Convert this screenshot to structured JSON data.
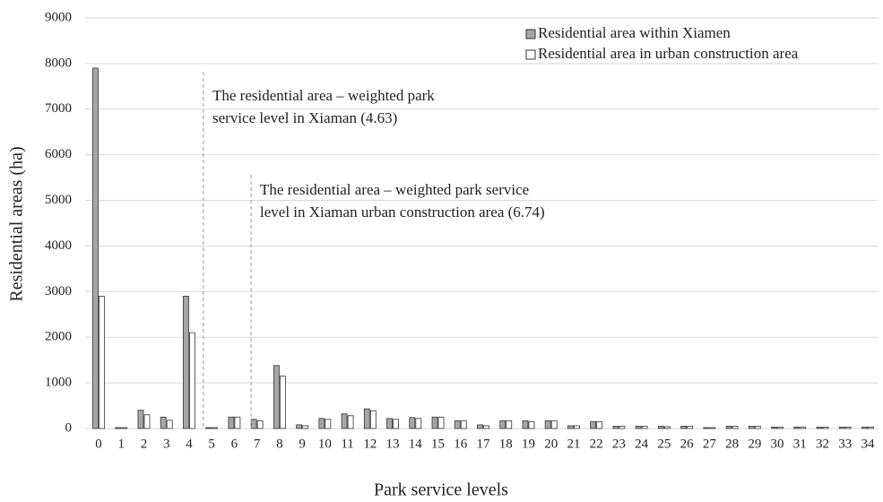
{
  "chart_data": {
    "type": "bar",
    "x_label": "Park service levels",
    "y_label": "Residential areas (ha)",
    "categories": [
      "0",
      "1",
      "2",
      "3",
      "4",
      "5",
      "6",
      "7",
      "8",
      "9",
      "10",
      "11",
      "12",
      "13",
      "14",
      "15",
      "16",
      "17",
      "18",
      "19",
      "20",
      "21",
      "22",
      "23",
      "24",
      "25",
      "26",
      "27",
      "28",
      "29",
      "30",
      "31",
      "32",
      "33",
      "34"
    ],
    "series": [
      {
        "name": "Residential area within Xiamen",
        "color": "#a6a6a6",
        "values": [
          7900,
          20,
          400,
          250,
          2900,
          20,
          250,
          200,
          1380,
          80,
          220,
          320,
          430,
          220,
          240,
          250,
          170,
          80,
          170,
          170,
          170,
          60,
          150,
          50,
          50,
          50,
          50,
          20,
          50,
          50,
          30,
          30,
          30,
          30,
          30
        ]
      },
      {
        "name": "Residential area in urban construction area",
        "color": "#ffffff",
        "values": [
          2900,
          20,
          300,
          180,
          2100,
          20,
          250,
          170,
          1150,
          60,
          200,
          280,
          390,
          200,
          220,
          250,
          170,
          60,
          170,
          150,
          170,
          60,
          150,
          50,
          50,
          40,
          50,
          20,
          50,
          50,
          30,
          30,
          30,
          30,
          30
        ]
      }
    ],
    "ylim": [
      0,
      9000
    ],
    "yticks": [
      0,
      1000,
      2000,
      3000,
      4000,
      5000,
      6000,
      7000,
      8000,
      9000
    ],
    "grid": true,
    "legend": "top-right",
    "annotations": [
      {
        "x": 4.63,
        "text": [
          "The residential area – weighted park",
          "service level in Xiaman (4.63)"
        ]
      },
      {
        "x": 6.74,
        "text": [
          "The residential area – weighted park service",
          "level in Xiaman urban construction area (6.74)"
        ]
      }
    ]
  }
}
